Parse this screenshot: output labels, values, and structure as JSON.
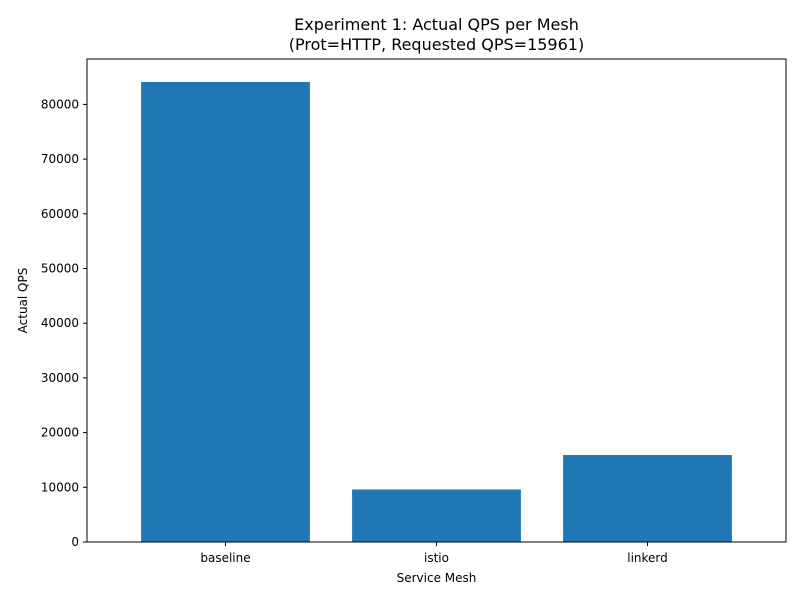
{
  "chart_data": {
    "type": "bar",
    "title_line1": "Experiment 1: Actual QPS per Mesh",
    "title_line2": "(Prot=HTTP, Requested QPS=15961)",
    "xlabel": "Service Mesh",
    "ylabel": "Actual QPS",
    "categories": [
      "baseline",
      "istio",
      "linkerd"
    ],
    "values": [
      84100,
      9600,
      15900
    ],
    "ylim": [
      0,
      88300
    ],
    "yticks": [
      0,
      10000,
      20000,
      30000,
      40000,
      50000,
      60000,
      70000,
      80000
    ],
    "bar_color": "#1f77b4",
    "grid": false,
    "legend": null
  }
}
